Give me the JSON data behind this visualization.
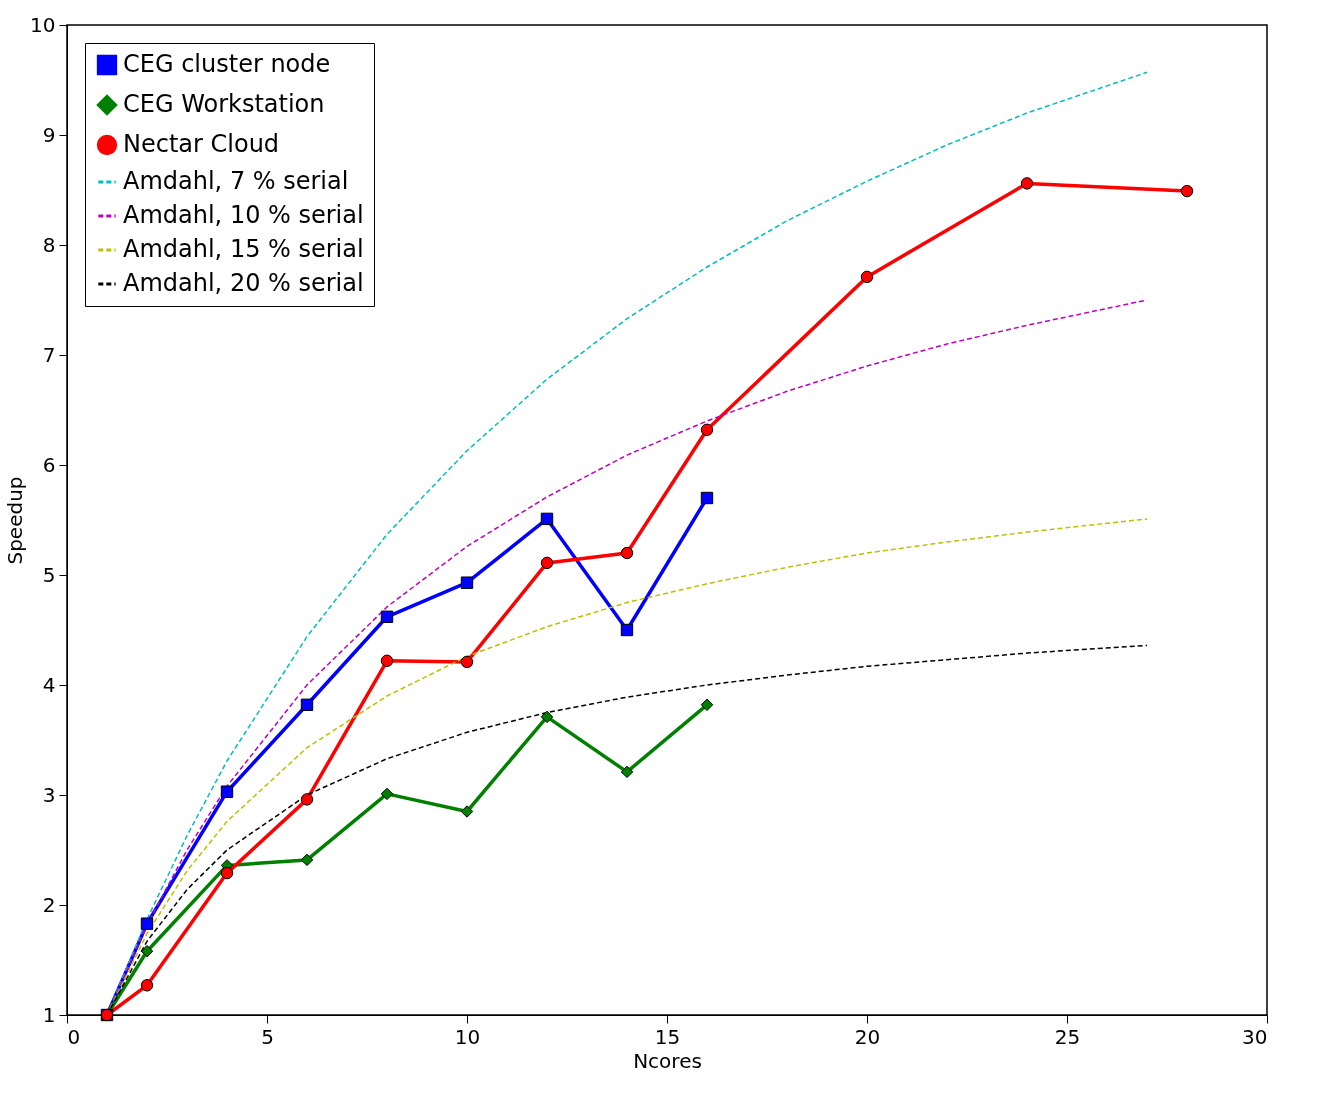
{
  "chart_data": {
    "type": "line",
    "xlabel": "Ncores",
    "ylabel": "Speedup",
    "xlim": [
      0,
      30
    ],
    "xticks": [
      0,
      5,
      10,
      15,
      20,
      25,
      30
    ],
    "ylim": [
      1,
      10
    ],
    "yticks": [
      1,
      2,
      3,
      4,
      5,
      6,
      7,
      8,
      9,
      10
    ],
    "grid": false,
    "legend": "top left",
    "series": [
      {
        "name": "CEG cluster node",
        "color": "#0000ff",
        "marker": "square",
        "line_style": "solid",
        "x": [
          1,
          2,
          4,
          6,
          8,
          10,
          12,
          14,
          16
        ],
        "values": [
          1,
          1.83,
          3.03,
          3.82,
          4.62,
          4.93,
          5.51,
          4.5,
          5.7
        ]
      },
      {
        "name": "CEG Workstation",
        "color": "#008000",
        "marker": "diamond",
        "line_style": "solid",
        "x": [
          1,
          2,
          4,
          6,
          8,
          10,
          12,
          14,
          16
        ],
        "values": [
          1,
          1.58,
          2.36,
          2.41,
          3.01,
          2.85,
          3.71,
          3.21,
          3.82
        ]
      },
      {
        "name": "Nectar Cloud",
        "color": "#ff0000",
        "marker": "circle",
        "line_style": "solid",
        "x": [
          1,
          2,
          4,
          6,
          8,
          10,
          12,
          14,
          16,
          20,
          24,
          28
        ],
        "values": [
          1,
          1.27,
          2.29,
          2.96,
          4.22,
          4.21,
          5.11,
          5.2,
          6.32,
          7.71,
          8.56,
          8.49
        ]
      },
      {
        "name": "Amdahl, 7 % serial",
        "color": "#00bfbf",
        "marker": "none",
        "line_style": "dashed",
        "x": [
          1,
          2,
          3,
          4,
          6,
          8,
          10,
          12,
          14,
          16,
          18,
          20,
          22,
          24,
          27
        ],
        "values": [
          1,
          1.87,
          2.63,
          3.31,
          4.44,
          5.37,
          6.13,
          6.78,
          7.33,
          7.8,
          8.22,
          8.58,
          8.91,
          9.2,
          9.57
        ]
      },
      {
        "name": "Amdahl, 10 % serial",
        "color": "#bf00bf",
        "marker": "none",
        "line_style": "dashed",
        "x": [
          1,
          2,
          3,
          4,
          6,
          8,
          10,
          12,
          14,
          16,
          18,
          20,
          22,
          24,
          27
        ],
        "values": [
          1,
          1.82,
          2.5,
          3.08,
          4.0,
          4.71,
          5.26,
          5.71,
          6.09,
          6.4,
          6.67,
          6.9,
          7.1,
          7.27,
          7.5
        ]
      },
      {
        "name": "Amdahl, 15 % serial",
        "color": "#bfbf00",
        "marker": "none",
        "line_style": "dashed",
        "x": [
          1,
          2,
          3,
          4,
          6,
          8,
          10,
          12,
          14,
          16,
          18,
          20,
          22,
          24,
          27
        ],
        "values": [
          1,
          1.74,
          2.31,
          2.76,
          3.43,
          3.9,
          4.26,
          4.53,
          4.75,
          4.92,
          5.07,
          5.2,
          5.3,
          5.39,
          5.51
        ]
      },
      {
        "name": "Amdahl, 20 % serial",
        "color": "#000000",
        "marker": "none",
        "line_style": "dashed",
        "x": [
          1,
          2,
          3,
          4,
          6,
          8,
          10,
          12,
          14,
          16,
          18,
          20,
          22,
          24,
          27
        ],
        "values": [
          1,
          1.67,
          2.14,
          2.5,
          3.0,
          3.33,
          3.57,
          3.75,
          3.89,
          4.0,
          4.09,
          4.17,
          4.23,
          4.29,
          4.36
        ]
      }
    ]
  }
}
